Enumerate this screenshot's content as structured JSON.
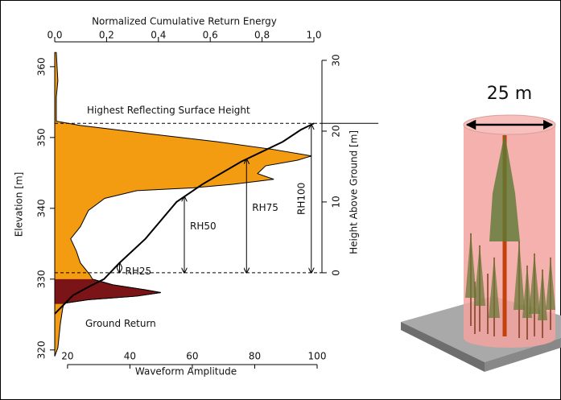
{
  "chart_data": {
    "type": "waveform",
    "x_label": "Waveform Amplitude",
    "y_label": "Elevation [m]",
    "x2_label": "Normalized Cumulative Return Energy",
    "y2_label": "Height Above Ground [m]",
    "xlim": [
      15.9,
      100
    ],
    "xticks": [
      20,
      40,
      60,
      80,
      100
    ],
    "x2lim": [
      0,
      1
    ],
    "x2ticks": [
      {
        "value": 0,
        "label": "0.0"
      },
      0.2,
      0.4,
      0.6,
      0.8,
      {
        "value": 1,
        "label": "1.0"
      }
    ],
    "ylim": [
      318.5,
      362.6
    ],
    "yticks": [
      320,
      330,
      340,
      350,
      360
    ],
    "y2lim": [
      -12.4,
      31.7
    ],
    "y2ticks": [
      0,
      10,
      20,
      30
    ],
    "waveform": {
      "color": "#f39c12",
      "elevation": [
        362.0,
        358.0,
        355.7,
        352.3,
        351.7,
        350.6,
        349.4,
        348.3,
        347.4,
        346.8,
        346.0,
        344.9,
        344.1,
        343.4,
        342.9,
        342.5,
        341.4,
        339.7,
        337.4,
        335.7,
        334.0,
        332.3,
        330.6,
        330.0,
        329.2,
        328.5,
        328.1,
        327.6,
        327.1,
        326.6,
        326.0,
        323.7,
        320.3,
        319.1
      ],
      "amplitude": [
        16.4,
        16.9,
        16.4,
        16.4,
        24.1,
        44.8,
        68.0,
        86.1,
        98.2,
        93.8,
        83.5,
        80.9,
        86.1,
        73.2,
        60.3,
        42.2,
        31.9,
        26.7,
        24.1,
        21.0,
        22.8,
        24.1,
        27.2,
        28.0,
        34.5,
        44.8,
        49.9,
        42.2,
        26.7,
        19.0,
        18.5,
        17.7,
        16.9,
        15.9
      ]
    },
    "ground_return": {
      "label": "Ground Return",
      "color": "#7b1416",
      "range": [
        326.5,
        330.0
      ]
    },
    "cumulative": {
      "color": "#000000",
      "elevation": [
        325.1,
        327.7,
        328.9,
        330.0,
        332.3,
        335.7,
        340.9,
        343.4,
        346.6,
        349.4,
        351.1,
        352.0
      ],
      "fraction": [
        0,
        0.07,
        0.13,
        0.19,
        0.25,
        0.35,
        0.47,
        0.57,
        0.72,
        0.88,
        0.95,
        1.0
      ]
    },
    "highest_surface": {
      "label": "Highest Reflecting Surface Height",
      "elevation": 352.0
    },
    "ground_elevation": 330.9,
    "rh_markers": [
      {
        "label": "RH25",
        "fraction": 0.25
      },
      {
        "label": "RH50",
        "fraction": 0.5
      },
      {
        "label": "RH75",
        "fraction": 0.74
      },
      {
        "label": "RH100",
        "fraction": 0.99
      }
    ]
  },
  "illustration": {
    "width_label": "25 m"
  }
}
